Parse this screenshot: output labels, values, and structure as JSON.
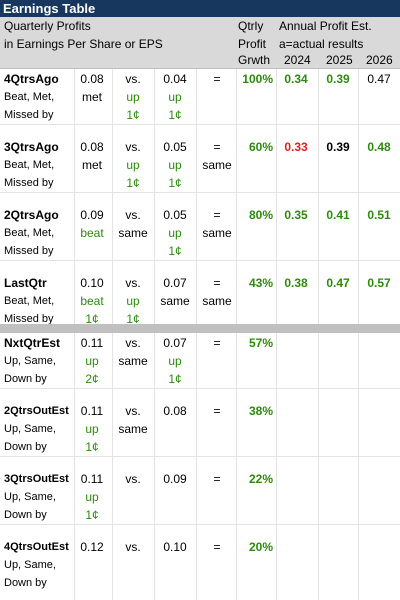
{
  "title": "Earnings Table",
  "header": {
    "line1": "Quarterly Profits",
    "line2": "in Earnings Per Share or EPS",
    "qtrly": "Qtrly",
    "profit": "Profit",
    "growth": "Grwth",
    "annual": "Annual Profit Est.",
    "actual_note": "a=actual results",
    "years": [
      "2024",
      "2025",
      "2026"
    ]
  },
  "colors": {
    "header_bar": "#17375e",
    "green": "#2d8a0e",
    "red": "#e02020",
    "band": "#c0c0c0"
  },
  "rows": [
    {
      "label": "4QtrsAgo",
      "sub": [
        "Beat, Met,",
        "Missed by"
      ],
      "eps": "0.08",
      "cmp": "met",
      "vs": "vs.",
      "eps2": "0.04",
      "chg": "up",
      "chg_amt": "1¢",
      "eq": "=",
      "growth": "100%",
      "y2024": "0.34",
      "y2025": "0.39",
      "y2026": "0.47",
      "beat_amt": "",
      "cmp_amt": "",
      "chg_word2": "up",
      "chg_amt2": "1¢"
    },
    {
      "label": "3QtrsAgo",
      "sub": [
        "Beat, Met,",
        "Missed by"
      ],
      "eps": "0.08",
      "cmp": "met",
      "vs": "vs.",
      "eps2": "0.05",
      "chg": "up",
      "chg_amt": "1¢",
      "eq": "=",
      "growth": "60%",
      "y2024": "0.33",
      "y2025": "0.39",
      "y2026": "0.48",
      "extra": "same"
    },
    {
      "label": "2QtrsAgo",
      "sub": [
        "Beat, Met,",
        "Missed by"
      ],
      "eps": "0.09",
      "cmp": "beat",
      "mid": "same",
      "eps2": "0.05",
      "chg": "up",
      "chg_amt": "1¢",
      "eq": "same",
      "growth": "80%",
      "y2024": "0.35",
      "y2025": "0.41",
      "y2026": "0.51"
    },
    {
      "label": "LastQtr",
      "sub": [
        "Beat, Met,",
        "Missed by"
      ],
      "eps": "0.10",
      "cmp": "beat",
      "cmp_amt": "1¢",
      "vs": "vs.",
      "eps2": "0.07",
      "chg": "same",
      "eq": "=",
      "extra": "same",
      "growth": "43%",
      "y2024": "0.38",
      "y2025": "0.47",
      "y2026": "0.57"
    },
    {
      "label": "NxtQtrEst",
      "sub": [
        "Up, Same,",
        "Down by"
      ],
      "eps": "0.11",
      "cmp": "up",
      "cmp_amt": "2¢",
      "mid": "same",
      "vs": "vs.",
      "eps2": "0.07",
      "chg": "up",
      "chg_amt": "1¢",
      "eq": "=",
      "growth": "57%"
    },
    {
      "label": "2QtrsOutEst",
      "sub": [
        "Up, Same,",
        "Down by"
      ],
      "eps": "0.11",
      "cmp": "up",
      "cmp_amt": "1¢",
      "vs": "vs.",
      "mid": "same",
      "eps2": "0.08",
      "eq": "=",
      "growth": "38%"
    },
    {
      "label": "3QtrsOutEst",
      "sub": [
        "Up, Same,",
        "Down by"
      ],
      "eps": "0.11",
      "cmp": "up",
      "cmp_amt": "1¢",
      "vs": "vs.",
      "eps2": "0.09",
      "eq": "=",
      "growth": "22%"
    },
    {
      "label": "4QtrsOutEst",
      "sub": [
        "Up, Same,",
        "Down by"
      ],
      "eps": "0.12",
      "vs": "vs.",
      "eps2": "0.10",
      "eq": "=",
      "growth": "20%"
    }
  ]
}
